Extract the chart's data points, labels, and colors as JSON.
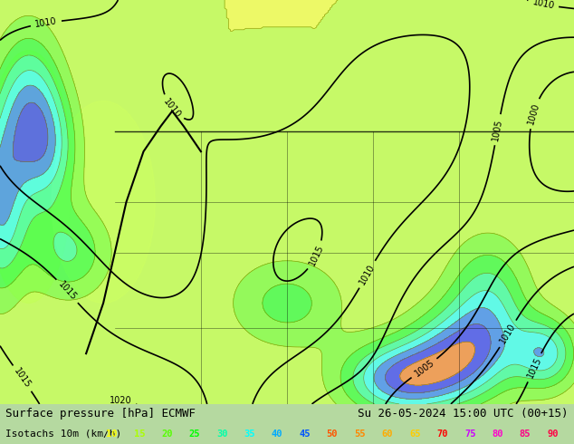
{
  "title_left": "Surface pressure [hPa] ECMWF",
  "title_right": "Su 26-05-2024 15:00 UTC (00+15)",
  "legend_label": "Isotachs 10m (km/h)",
  "legend_values": [
    10,
    15,
    20,
    25,
    30,
    35,
    40,
    45,
    50,
    55,
    60,
    65,
    70,
    75,
    80,
    85,
    90
  ],
  "legend_colors": [
    "#ffff00",
    "#aaff00",
    "#55ff00",
    "#00ff00",
    "#00ffaa",
    "#00ffff",
    "#00aaff",
    "#0055ff",
    "#ff5500",
    "#ff8800",
    "#ffaa00",
    "#ffcc00",
    "#ff0000",
    "#cc00ff",
    "#ff00cc",
    "#ff0088",
    "#ff0044"
  ],
  "bg_color": "#b5e8a0",
  "map_bg": "#b5e8a0",
  "title_fontsize": 9,
  "legend_fontsize": 8,
  "fig_width": 6.34,
  "fig_height": 4.9
}
